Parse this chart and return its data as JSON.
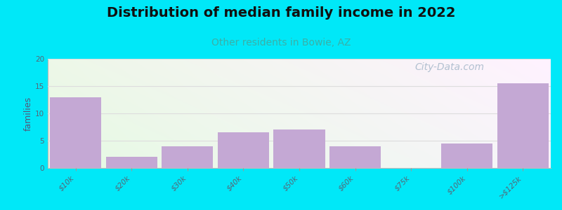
{
  "title": "Distribution of median family income in 2022",
  "subtitle": "Other residents in Bowie, AZ",
  "ylabel": "families",
  "categories": [
    "$10k",
    "$20k",
    "$30k",
    "$40k",
    "$50k",
    "$60k",
    "$75k",
    "$100k",
    ">$125k"
  ],
  "values": [
    13,
    2,
    4,
    6.5,
    7,
    4,
    0,
    4.5,
    15.5
  ],
  "bar_color": "#c4a8d4",
  "bar_edge_color": "#b090c0",
  "background_outer": "#00e8f8",
  "plot_bg_top_left": "#eaf5e8",
  "plot_bg_top_right": "#f5f5f5",
  "title_fontsize": 14,
  "title_color": "#111111",
  "subtitle_fontsize": 10,
  "subtitle_color": "#3ab0a8",
  "ylabel_fontsize": 9,
  "ylabel_color": "#555577",
  "tick_fontsize": 7.5,
  "tick_color": "#556677",
  "ylim": [
    0,
    20
  ],
  "yticks": [
    0,
    5,
    10,
    15,
    20
  ],
  "watermark_text": "City-Data.com",
  "watermark_color": "#aabbcc",
  "watermark_fontsize": 10,
  "grid_color": "#dddddd"
}
